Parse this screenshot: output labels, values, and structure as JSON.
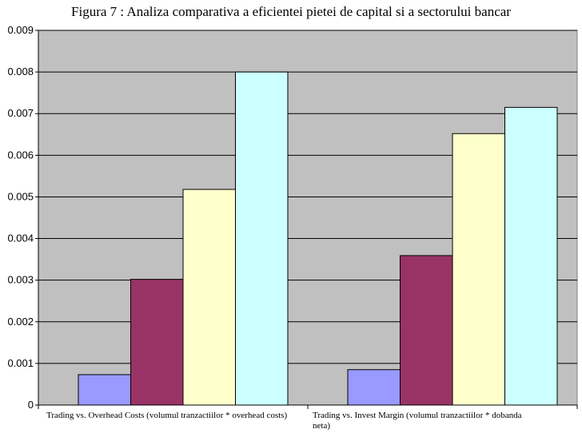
{
  "chart_data": {
    "type": "bar",
    "title": "Figura 7 : Analiza comparativa a eficientei pietei de capital si a sectorului bancar",
    "xlabel": "",
    "ylabel": "",
    "ylim": [
      0,
      0.009
    ],
    "yticks": [
      "0",
      "0.001",
      "0.002",
      "0.003",
      "0.004",
      "0.005",
      "0.006",
      "0.007",
      "0.008",
      "0.009"
    ],
    "grid": true,
    "legend": "none",
    "categories": [
      [
        "Trading vs. Overhead Costs (volumul tranzactiilor * overhead costs)"
      ],
      [
        "Trading vs. Invest Margin (volumul tranzactiilor * dobanda",
        "neta)"
      ]
    ],
    "series": [
      {
        "color": "#9999ff",
        "values": [
          0.00073,
          0.00085
        ]
      },
      {
        "color": "#993366",
        "values": [
          0.00302,
          0.00359
        ]
      },
      {
        "color": "#ffffcc",
        "values": [
          0.00518,
          0.00652
        ]
      },
      {
        "color": "#ccffff",
        "values": [
          0.008,
          0.00715
        ]
      }
    ],
    "plot_background": "#c0c0c0"
  }
}
